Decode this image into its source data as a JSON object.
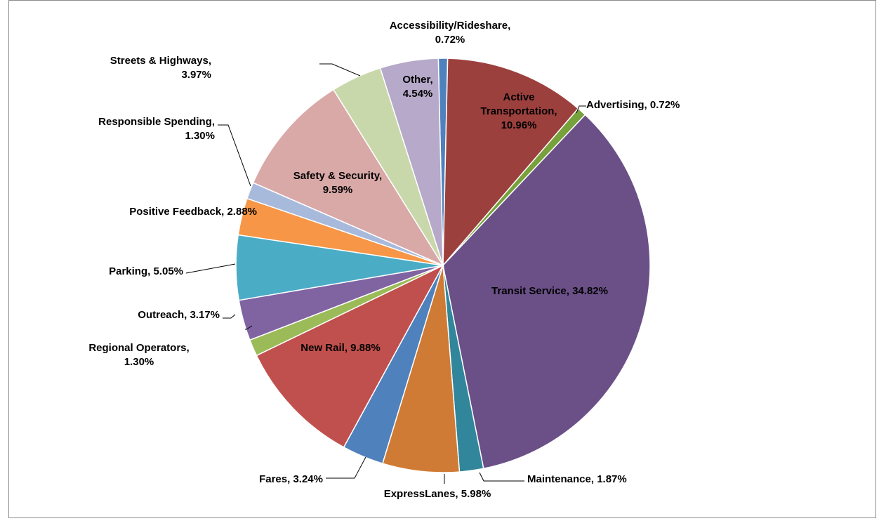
{
  "chart_data": {
    "type": "pie",
    "title": "",
    "start_slice": "Accessibility/Rideshare",
    "direction": "clockwise",
    "slices": [
      {
        "label": "Accessibility/Rideshare",
        "value": 0.72,
        "text_lines": [
          "Accessibility/Rideshare,",
          "0.72%"
        ],
        "color": "#4F81BD"
      },
      {
        "label": "Active Transportation",
        "value": 10.96,
        "text_lines": [
          "Active",
          "Transportation,",
          "10.96%"
        ],
        "color": "#9C403E"
      },
      {
        "label": "Advertising",
        "value": 0.72,
        "text_lines": [
          "Advertising, 0.72%"
        ],
        "color": "#77A13B"
      },
      {
        "label": "Transit Service",
        "value": 34.82,
        "text_lines": [
          "Transit Service, 34.82%"
        ],
        "color": "#6A5087"
      },
      {
        "label": "Maintenance",
        "value": 1.87,
        "text_lines": [
          "Maintenance, 1.87%"
        ],
        "color": "#31869B"
      },
      {
        "label": "ExpressLanes",
        "value": 5.98,
        "text_lines": [
          "ExpressLanes, 5.98%"
        ],
        "color": "#CF7B35"
      },
      {
        "label": "Fares",
        "value": 3.24,
        "text_lines": [
          "Fares, 3.24%"
        ],
        "color": "#4F81BD"
      },
      {
        "label": "New Rail",
        "value": 9.88,
        "text_lines": [
          "New Rail, 9.88%"
        ],
        "color": "#C0504D"
      },
      {
        "label": "Regional Operators",
        "value": 1.3,
        "text_lines": [
          "Regional Operators,",
          "1.30%"
        ],
        "color": "#9BBB59"
      },
      {
        "label": "Outreach",
        "value": 3.17,
        "text_lines": [
          "Outreach, 3.17%"
        ],
        "color": "#8064A2"
      },
      {
        "label": "Parking",
        "value": 5.05,
        "text_lines": [
          "Parking, 5.05%"
        ],
        "color": "#4BACC6"
      },
      {
        "label": "Positive Feedback",
        "value": 2.88,
        "text_lines": [
          "Positive Feedback, 2.88%"
        ],
        "color": "#F79646"
      },
      {
        "label": "Responsible Spending",
        "value": 1.3,
        "text_lines": [
          "Responsible Spending,",
          "1.30%"
        ],
        "color": "#A8BADC"
      },
      {
        "label": "Safety & Security",
        "value": 9.59,
        "text_lines": [
          "Safety & Security,",
          "9.59%"
        ],
        "color": "#D9A9A8"
      },
      {
        "label": "Streets & Highways",
        "value": 3.97,
        "text_lines": [
          "Streets & Highways,",
          "3.97%"
        ],
        "color": "#C9D8AB"
      },
      {
        "label": "Other",
        "value": 4.54,
        "text_lines": [
          "Other,",
          "4.54%"
        ],
        "color": "#B6A9C9"
      }
    ]
  }
}
